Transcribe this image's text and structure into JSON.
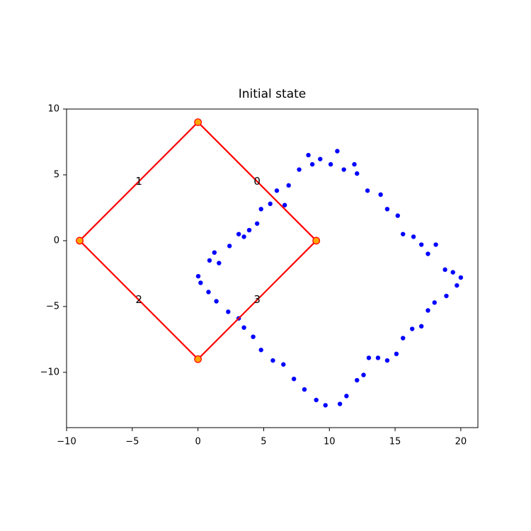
{
  "chart_data": {
    "type": "scatter",
    "title": "Initial state",
    "xlim": [
      -10,
      21.3
    ],
    "ylim": [
      -14.2,
      10
    ],
    "xticks": [
      {
        "value": -10,
        "label": "−10"
      },
      {
        "value": -5,
        "label": "−5"
      },
      0,
      5,
      10,
      15,
      20
    ],
    "yticks": [
      {
        "value": -10,
        "label": "−10"
      },
      {
        "value": -5,
        "label": "−5"
      },
      0,
      5,
      10
    ],
    "points": {
      "color": "#0000ff",
      "x": [
        0.02,
        0.88,
        1.25,
        1.6,
        2.4,
        3.1,
        3.5,
        3.9,
        4.5,
        4.8,
        5.5,
        6.0,
        6.6,
        6.9,
        7.7,
        8.4,
        8.7,
        9.3,
        10.1,
        10.6,
        11.1,
        11.9,
        12.1,
        12.9,
        13.9,
        14.4,
        15.2,
        15.6,
        16.4,
        17.0,
        17.5,
        18.1,
        18.8,
        19.4,
        20.0,
        19.7,
        18.9,
        18.0,
        17.5,
        17.0,
        16.3,
        15.6,
        15.1,
        14.4,
        13.7,
        13.0,
        12.6,
        12.1,
        11.3,
        10.8,
        9.7,
        9.0,
        8.1,
        7.3,
        6.5,
        5.7,
        4.8,
        4.2,
        3.5,
        3.1,
        2.3,
        1.4,
        0.8,
        0.2
      ],
      "y": [
        -2.7,
        -1.5,
        -0.9,
        -1.7,
        -0.4,
        0.5,
        0.3,
        0.8,
        1.3,
        2.4,
        2.8,
        3.8,
        2.7,
        4.2,
        5.4,
        6.5,
        5.8,
        6.2,
        5.8,
        6.8,
        5.4,
        5.8,
        5.1,
        3.8,
        3.5,
        2.4,
        1.9,
        0.5,
        0.3,
        -0.3,
        -1.0,
        -0.3,
        -2.2,
        -2.4,
        -2.8,
        -3.4,
        -4.2,
        -4.7,
        -5.3,
        -6.5,
        -6.7,
        -7.4,
        -8.6,
        -9.1,
        -8.9,
        -8.9,
        -10.2,
        -10.6,
        -11.8,
        -12.4,
        -12.5,
        -12.1,
        -11.3,
        -10.5,
        -9.4,
        -9.1,
        -8.3,
        -7.3,
        -6.6,
        -5.9,
        -5.4,
        -4.6,
        -3.9,
        -3.2
      ]
    },
    "polygon": {
      "color": "#ff0000",
      "marker_color": "#ffa500",
      "x": [
        9,
        0,
        -9,
        0
      ],
      "y": [
        0,
        9,
        0,
        -9
      ]
    },
    "edge_labels": [
      {
        "text": "0",
        "x": 4.5,
        "y": 4.5
      },
      {
        "text": "1",
        "x": -4.5,
        "y": 4.5
      },
      {
        "text": "2",
        "x": -4.5,
        "y": -4.5
      },
      {
        "text": "3",
        "x": 4.5,
        "y": -4.5
      }
    ]
  }
}
